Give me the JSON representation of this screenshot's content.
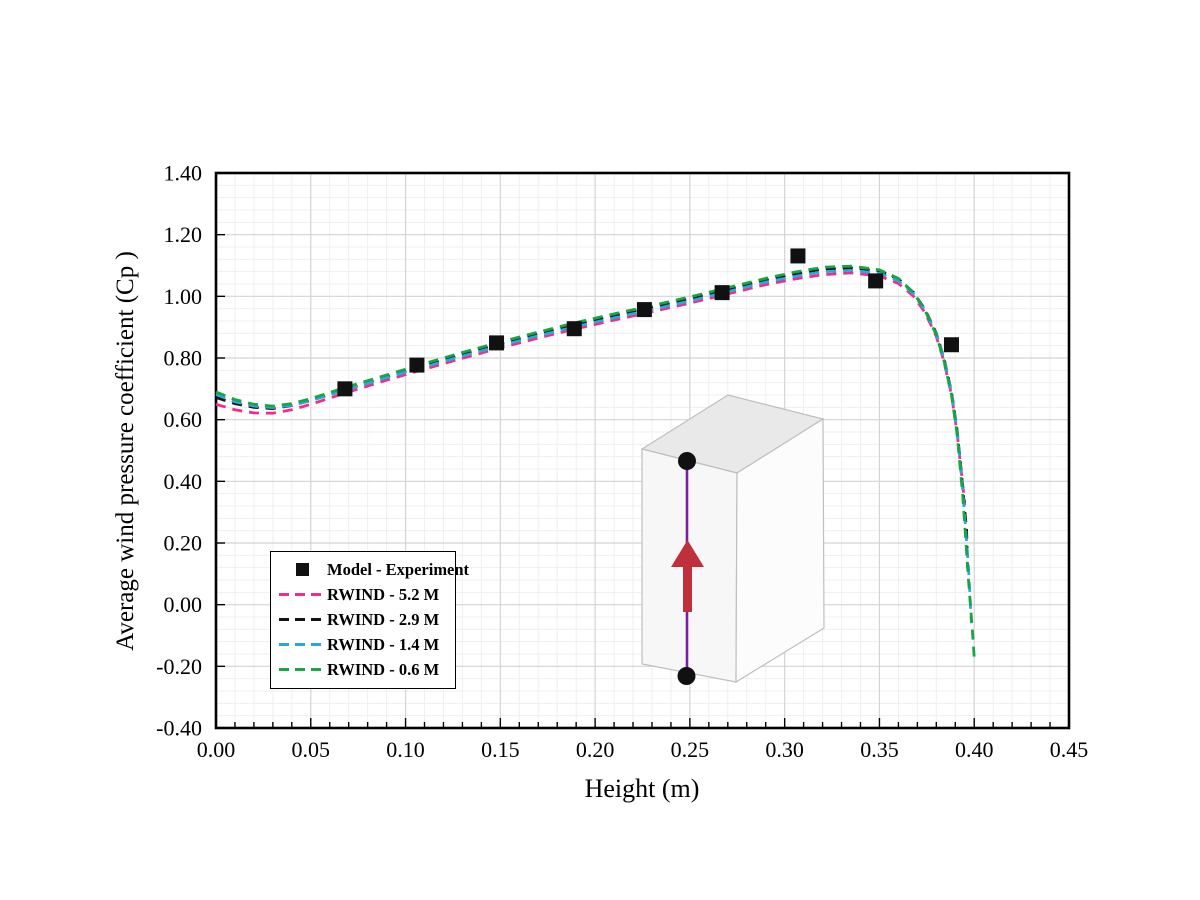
{
  "chart_data": {
    "type": "line",
    "title": "",
    "xlabel": "Height (m)",
    "ylabel": "Average wind pressure coefficient (Cp )",
    "xlim": [
      0.0,
      0.45
    ],
    "ylim": [
      -0.4,
      1.4
    ],
    "x_major_step": 0.05,
    "x_minor_step": 0.01,
    "y_major_step": 0.2,
    "y_minor_step": 0.04,
    "x_tick_labels": [
      "0.00",
      "0.05",
      "0.10",
      "0.15",
      "0.20",
      "0.25",
      "0.30",
      "0.35",
      "0.40",
      "0.45"
    ],
    "y_tick_labels": [
      "1.40",
      "1.20",
      "1.00",
      "0.80",
      "0.60",
      "0.40",
      "0.20",
      "0.00",
      "-0.20",
      "-0.40"
    ],
    "grid": "major+minor",
    "legend_position": "inside lower-left",
    "experiment": {
      "label": "Model - Experiment",
      "marker": "square",
      "color": "#111111",
      "points": [
        [
          0.068,
          0.7
        ],
        [
          0.106,
          0.777
        ],
        [
          0.148,
          0.849
        ],
        [
          0.189,
          0.895
        ],
        [
          0.226,
          0.957
        ],
        [
          0.267,
          1.012
        ],
        [
          0.307,
          1.131
        ],
        [
          0.348,
          1.05
        ],
        [
          0.388,
          0.843
        ]
      ]
    },
    "series": [
      {
        "name": "RWIND - 5.2 M",
        "color": "#f72a8a",
        "style": "dashed",
        "points": [
          [
            0.0,
            0.65
          ],
          [
            0.01,
            0.632
          ],
          [
            0.02,
            0.622
          ],
          [
            0.03,
            0.621
          ],
          [
            0.04,
            0.632
          ],
          [
            0.05,
            0.65
          ],
          [
            0.07,
            0.69
          ],
          [
            0.09,
            0.728
          ],
          [
            0.11,
            0.764
          ],
          [
            0.13,
            0.799
          ],
          [
            0.15,
            0.833
          ],
          [
            0.17,
            0.865
          ],
          [
            0.19,
            0.895
          ],
          [
            0.21,
            0.923
          ],
          [
            0.23,
            0.95
          ],
          [
            0.25,
            0.978
          ],
          [
            0.27,
            1.008
          ],
          [
            0.29,
            1.038
          ],
          [
            0.305,
            1.056
          ],
          [
            0.32,
            1.07
          ],
          [
            0.335,
            1.076
          ],
          [
            0.35,
            1.066
          ],
          [
            0.36,
            1.042
          ],
          [
            0.368,
            1.0
          ],
          [
            0.374,
            0.948
          ],
          [
            0.38,
            0.87
          ],
          [
            0.384,
            0.79
          ],
          [
            0.388,
            0.68
          ],
          [
            0.391,
            0.555
          ],
          [
            0.393,
            0.44
          ],
          [
            0.395,
            0.33
          ]
        ]
      },
      {
        "name": "RWIND - 2.9 M",
        "color": "#141414",
        "style": "dashed",
        "points": [
          [
            0.0,
            0.672
          ],
          [
            0.01,
            0.652
          ],
          [
            0.02,
            0.64
          ],
          [
            0.03,
            0.636
          ],
          [
            0.04,
            0.646
          ],
          [
            0.05,
            0.662
          ],
          [
            0.07,
            0.701
          ],
          [
            0.09,
            0.739
          ],
          [
            0.11,
            0.776
          ],
          [
            0.13,
            0.812
          ],
          [
            0.15,
            0.846
          ],
          [
            0.17,
            0.879
          ],
          [
            0.19,
            0.91
          ],
          [
            0.21,
            0.938
          ],
          [
            0.23,
            0.965
          ],
          [
            0.25,
            0.993
          ],
          [
            0.27,
            1.023
          ],
          [
            0.29,
            1.053
          ],
          [
            0.305,
            1.072
          ],
          [
            0.32,
            1.088
          ],
          [
            0.335,
            1.092
          ],
          [
            0.35,
            1.082
          ],
          [
            0.36,
            1.056
          ],
          [
            0.368,
            1.012
          ],
          [
            0.374,
            0.958
          ],
          [
            0.38,
            0.88
          ],
          [
            0.384,
            0.8
          ],
          [
            0.388,
            0.69
          ],
          [
            0.391,
            0.565
          ],
          [
            0.394,
            0.38
          ],
          [
            0.396,
            0.24
          ],
          [
            0.3965,
            0.12
          ]
        ]
      },
      {
        "name": "RWIND - 1.4 M",
        "color": "#2aa7e0",
        "style": "dashed",
        "points": [
          [
            0.0,
            0.682
          ],
          [
            0.01,
            0.658
          ],
          [
            0.02,
            0.644
          ],
          [
            0.03,
            0.639
          ],
          [
            0.04,
            0.647
          ],
          [
            0.05,
            0.662
          ],
          [
            0.07,
            0.699
          ],
          [
            0.09,
            0.736
          ],
          [
            0.11,
            0.771
          ],
          [
            0.13,
            0.806
          ],
          [
            0.15,
            0.84
          ],
          [
            0.17,
            0.872
          ],
          [
            0.19,
            0.902
          ],
          [
            0.21,
            0.93
          ],
          [
            0.23,
            0.957
          ],
          [
            0.25,
            0.985
          ],
          [
            0.27,
            1.015
          ],
          [
            0.29,
            1.046
          ],
          [
            0.305,
            1.064
          ],
          [
            0.32,
            1.08
          ],
          [
            0.335,
            1.084
          ],
          [
            0.35,
            1.075
          ],
          [
            0.36,
            1.05
          ],
          [
            0.368,
            1.008
          ],
          [
            0.374,
            0.955
          ],
          [
            0.38,
            0.878
          ],
          [
            0.384,
            0.798
          ],
          [
            0.388,
            0.688
          ],
          [
            0.391,
            0.56
          ],
          [
            0.394,
            0.37
          ],
          [
            0.397,
            0.12
          ],
          [
            0.3985,
            -0.06
          ]
        ]
      },
      {
        "name": "RWIND - 0.6 M",
        "color": "#18a544",
        "style": "dashed",
        "points": [
          [
            0.0,
            0.69
          ],
          [
            0.01,
            0.665
          ],
          [
            0.02,
            0.65
          ],
          [
            0.03,
            0.644
          ],
          [
            0.04,
            0.652
          ],
          [
            0.05,
            0.668
          ],
          [
            0.07,
            0.708
          ],
          [
            0.09,
            0.745
          ],
          [
            0.11,
            0.782
          ],
          [
            0.13,
            0.818
          ],
          [
            0.15,
            0.852
          ],
          [
            0.17,
            0.884
          ],
          [
            0.19,
            0.915
          ],
          [
            0.21,
            0.943
          ],
          [
            0.23,
            0.97
          ],
          [
            0.25,
            0.998
          ],
          [
            0.27,
            1.028
          ],
          [
            0.29,
            1.058
          ],
          [
            0.305,
            1.078
          ],
          [
            0.32,
            1.094
          ],
          [
            0.335,
            1.098
          ],
          [
            0.35,
            1.086
          ],
          [
            0.36,
            1.058
          ],
          [
            0.368,
            1.012
          ],
          [
            0.374,
            0.955
          ],
          [
            0.38,
            0.875
          ],
          [
            0.384,
            0.792
          ],
          [
            0.388,
            0.68
          ],
          [
            0.391,
            0.55
          ],
          [
            0.394,
            0.35
          ],
          [
            0.397,
            0.08
          ],
          [
            0.399,
            -0.08
          ],
          [
            0.4,
            -0.17
          ]
        ]
      }
    ]
  },
  "legend": {
    "items": [
      {
        "marker": "square",
        "color": "#111111",
        "label": "Model - Experiment"
      },
      {
        "marker": "dash",
        "color": "#f72a8a",
        "label": "RWIND - 5.2 M"
      },
      {
        "marker": "dash",
        "color": "#141414",
        "label": "RWIND - 2.9 M"
      },
      {
        "marker": "dash",
        "color": "#2aa7e0",
        "label": "RWIND - 1.4 M"
      },
      {
        "marker": "dash",
        "color": "#18a544",
        "label": "RWIND - 0.6 M"
      }
    ]
  },
  "inset": {
    "name": "building-model-3d",
    "box_top_fill": "#e9e9e9",
    "box_front_fill": "#f7f7f7",
    "box_side_fill": "#fcfcfc",
    "box_stroke": "#bfbfbf",
    "probe_line_color": "#7a1fa2",
    "arrow_color": "#c0303c",
    "dot_color": "#111111"
  },
  "colors": {
    "grid_major": "#d4d4d4",
    "grid_minor": "#efefef",
    "axis": "#000000",
    "background": "#ffffff"
  }
}
